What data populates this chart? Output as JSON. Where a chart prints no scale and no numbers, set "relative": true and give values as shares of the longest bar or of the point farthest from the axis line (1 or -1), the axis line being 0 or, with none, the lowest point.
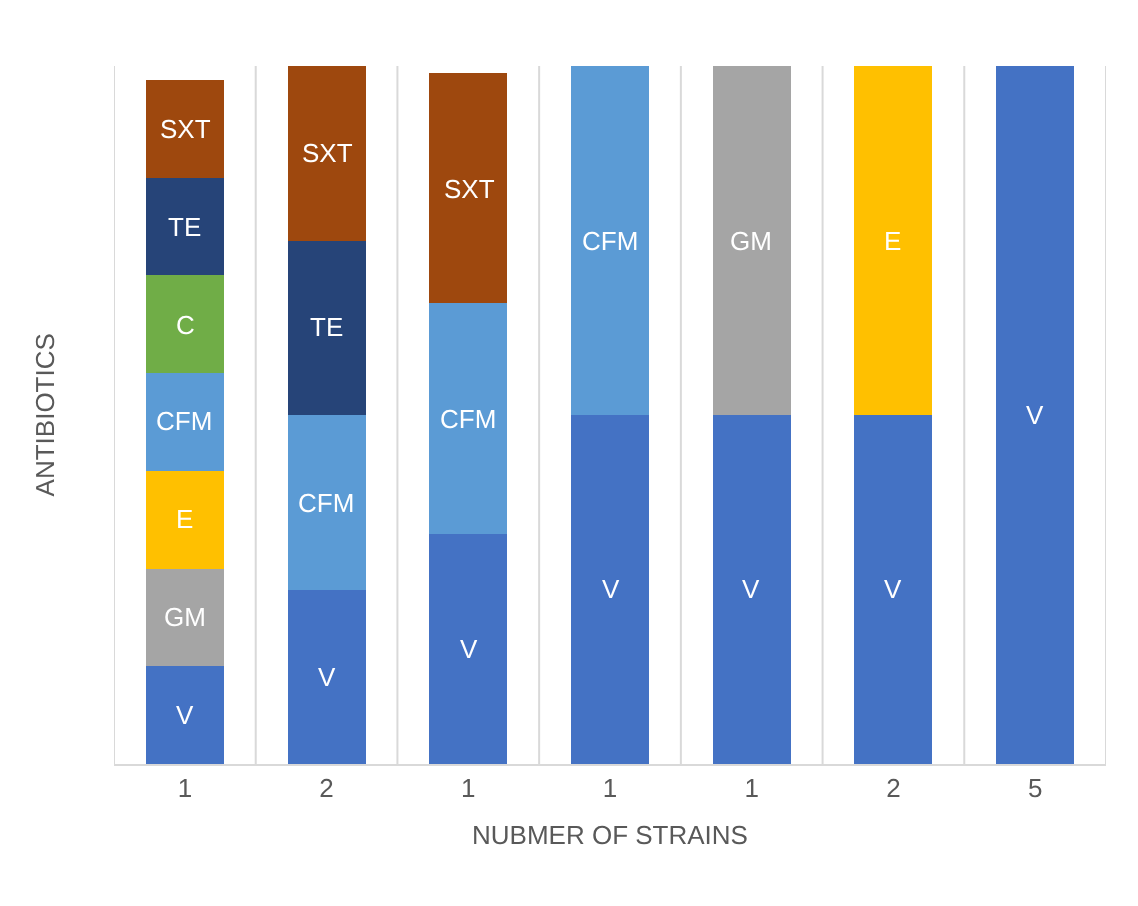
{
  "chart_data": {
    "type": "bar",
    "stacked": true,
    "relative": true,
    "xlabel": "NUBMER OF STRAINS",
    "ylabel": "ANTIBIOTICS",
    "categories": [
      "1",
      "2",
      "1",
      "1",
      "1",
      "2",
      "5"
    ],
    "grid": "x",
    "legend": false,
    "series": [
      {
        "name": "V",
        "color": "#4472c4",
        "values": [
          0.14,
          0.25,
          0.33,
          0.5,
          0.5,
          0.5,
          1
        ]
      },
      {
        "name": "GM",
        "color": "#a5a5a5",
        "values": [
          0.14,
          null,
          null,
          null,
          0.5,
          null,
          null
        ]
      },
      {
        "name": "E",
        "color": "#ffc000",
        "values": [
          0.14,
          null,
          null,
          null,
          null,
          0.5,
          null
        ]
      },
      {
        "name": "CFM",
        "color": "#5b9bd5",
        "values": [
          0.14,
          0.25,
          0.33,
          0.5,
          null,
          null,
          null
        ]
      },
      {
        "name": "C",
        "color": "#70ad47",
        "values": [
          0.14,
          null,
          null,
          null,
          null,
          null,
          null
        ]
      },
      {
        "name": "TE",
        "color": "#264478",
        "values": [
          0.14,
          0.25,
          null,
          null,
          null,
          null,
          null
        ]
      },
      {
        "name": "SXT",
        "color": "#9e480e",
        "values": [
          0.14,
          0.25,
          0.33,
          null,
          null,
          null,
          null
        ]
      }
    ]
  }
}
